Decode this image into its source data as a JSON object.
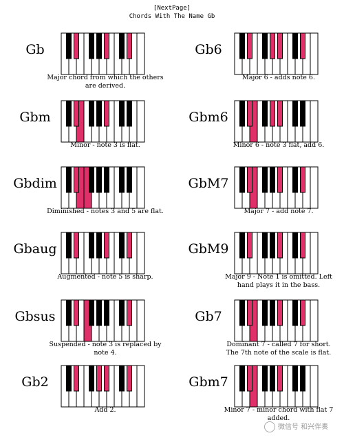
{
  "header": {
    "link_label": "[NextPage]",
    "title": "Chords With The Name Gb"
  },
  "chords": [
    {
      "name": "Gb",
      "caption": "Major chord from which the others are derived.",
      "whites": [],
      "blacks": [
        1,
        4,
        6
      ]
    },
    {
      "name": "Gb6",
      "caption": "Major 6 - adds note 6.",
      "whites": [],
      "blacks": [
        1,
        3,
        4,
        6
      ]
    },
    {
      "name": "Gbm",
      "caption": "Minor - note 3 is flat.",
      "whites": [
        2
      ],
      "blacks": [
        1,
        4
      ]
    },
    {
      "name": "Gbm6",
      "caption": "Minor 6 - note 3 flat, add 6.",
      "whites": [
        2
      ],
      "blacks": [
        1,
        3,
        4
      ]
    },
    {
      "name": "Gbdim",
      "caption": "Diminished - notes 3 and 5 are flat.",
      "whites": [
        2,
        3
      ],
      "blacks": [
        1
      ]
    },
    {
      "name": "GbM7",
      "caption": "Major 7 - add note 7.",
      "whites": [
        2
      ],
      "blacks": [
        1,
        4,
        6
      ]
    },
    {
      "name": "Gbaug",
      "caption": "Augmented - note 5 is sharp.",
      "whites": [],
      "blacks": [
        1,
        4,
        6
      ]
    },
    {
      "name": "GbM9",
      "caption": "Major 9 - Note 1 is omitted. Left hand plays it in the bass.",
      "whites": [],
      "blacks": [
        1,
        4,
        6,
        8
      ]
    },
    {
      "name": "Gbsus",
      "caption": "Suspended - note 3 is replaced by note 4.",
      "whites": [
        3
      ],
      "blacks": [
        1,
        6
      ]
    },
    {
      "name": "Gb7",
      "caption": "Dominant 7 - called 7 for short. The 7th note of the scale is flat.",
      "whites": [
        2
      ],
      "blacks": [
        1,
        4,
        6
      ]
    },
    {
      "name": "Gb2",
      "caption": "Add 2.",
      "whites": [],
      "blacks": [
        1,
        3,
        4,
        6
      ]
    },
    {
      "name": "Gbm7",
      "caption": "Minor 7 - minor chord with flat 7 added.",
      "whites": [
        2
      ],
      "blacks": [
        1,
        4
      ]
    }
  ],
  "watermark": "微信号 和兴伴奏",
  "colors": {
    "highlight": "#e0306a",
    "black_key": "#000000",
    "white_key": "#ffffff"
  }
}
